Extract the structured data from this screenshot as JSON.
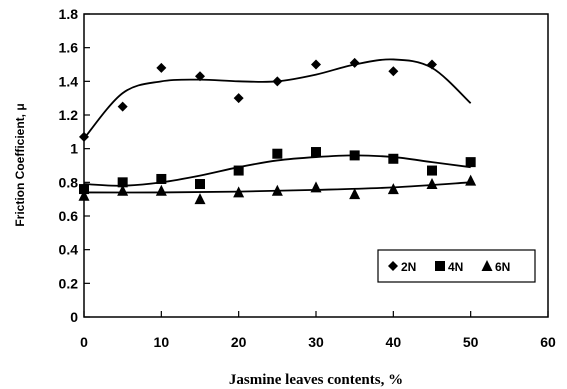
{
  "chart_data": {
    "type": "scatter",
    "xlabel": "Jasmine  leaves contents, %",
    "ylabel": "Friction Coefficient, μ",
    "xlim": [
      0,
      60
    ],
    "ylim": [
      0,
      1.8
    ],
    "xticks": [
      0,
      10,
      20,
      30,
      40,
      50,
      60
    ],
    "yticks": [
      0,
      0.2,
      0.4,
      0.6,
      0.8,
      1,
      1.2,
      1.4,
      1.6,
      1.8
    ],
    "xtick_labels": [
      "0",
      "10",
      "20",
      "30",
      "40",
      "50",
      "60"
    ],
    "ytick_labels": [
      "0",
      "0.2",
      "0.4",
      "0.6",
      "0.8",
      "1",
      "1.2",
      "1.4",
      "1.6",
      "1.8"
    ],
    "grid": false,
    "legend_position": "bottom-right",
    "series": [
      {
        "name": "2N",
        "marker": "diamond",
        "x": [
          0,
          5,
          10,
          15,
          20,
          25,
          30,
          35,
          40,
          45
        ],
        "y": [
          1.07,
          1.25,
          1.48,
          1.43,
          1.3,
          1.4,
          1.5,
          1.51,
          1.46,
          1.5
        ],
        "trend_x": [
          0,
          5,
          10,
          15,
          20,
          25,
          30,
          35,
          40,
          45,
          50
        ],
        "trend_y": [
          1.06,
          1.33,
          1.4,
          1.41,
          1.4,
          1.4,
          1.44,
          1.5,
          1.53,
          1.48,
          1.27
        ]
      },
      {
        "name": "4N",
        "marker": "square",
        "x": [
          0,
          5,
          10,
          15,
          20,
          25,
          30,
          35,
          40,
          45,
          50
        ],
        "y": [
          0.76,
          0.8,
          0.82,
          0.79,
          0.87,
          0.97,
          0.98,
          0.96,
          0.94,
          0.87,
          0.92
        ],
        "trend_x": [
          0,
          5,
          10,
          15,
          20,
          25,
          30,
          35,
          40,
          45,
          50
        ],
        "trend_y": [
          0.79,
          0.78,
          0.8,
          0.84,
          0.89,
          0.93,
          0.95,
          0.96,
          0.95,
          0.92,
          0.89
        ]
      },
      {
        "name": "6N",
        "marker": "triangle",
        "x": [
          0,
          5,
          10,
          15,
          20,
          25,
          30,
          35,
          40,
          45,
          50
        ],
        "y": [
          0.72,
          0.75,
          0.75,
          0.7,
          0.74,
          0.75,
          0.77,
          0.73,
          0.76,
          0.79,
          0.81
        ],
        "trend_x": [
          0,
          10,
          20,
          30,
          40,
          50
        ],
        "trend_y": [
          0.74,
          0.74,
          0.745,
          0.755,
          0.77,
          0.8
        ]
      }
    ]
  },
  "colors": {
    "marks": "#000000",
    "background": "#ffffff"
  }
}
